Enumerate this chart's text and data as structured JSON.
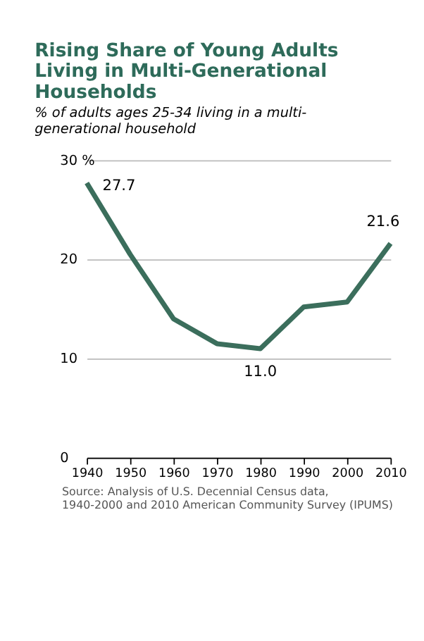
{
  "chart_data": {
    "type": "line",
    "title": "Rising Share of Young Adults Living in Multi-Generational Households",
    "subtitle": "% of adults ages 25-34 living in a multi-generational household",
    "x": [
      1940,
      1950,
      1960,
      1970,
      1980,
      1990,
      2000,
      2010
    ],
    "series": [
      {
        "color": "#3b6e5c",
        "values": [
          27.7,
          20.5,
          14.0,
          11.5,
          11.0,
          15.2,
          15.7,
          21.6
        ],
        "value_labels": [
          "27.7",
          null,
          null,
          null,
          "11.0",
          null,
          null,
          "21.6"
        ]
      }
    ],
    "xlim": [
      1940,
      2010
    ],
    "xticks": [
      1940,
      1950,
      1960,
      1970,
      1980,
      1990,
      2000,
      2010
    ],
    "ylim": [
      0,
      30
    ],
    "yticks": [
      0,
      10,
      20,
      {
        "value": 30,
        "label": "30 %"
      }
    ],
    "grid": "y",
    "marker": "none",
    "line_style": "solid",
    "annotations": [
      "Source: Analysis of U.S. Decennial Census data, 1940-2000 and 2010 American Community Survey (IPUMS)"
    ]
  }
}
